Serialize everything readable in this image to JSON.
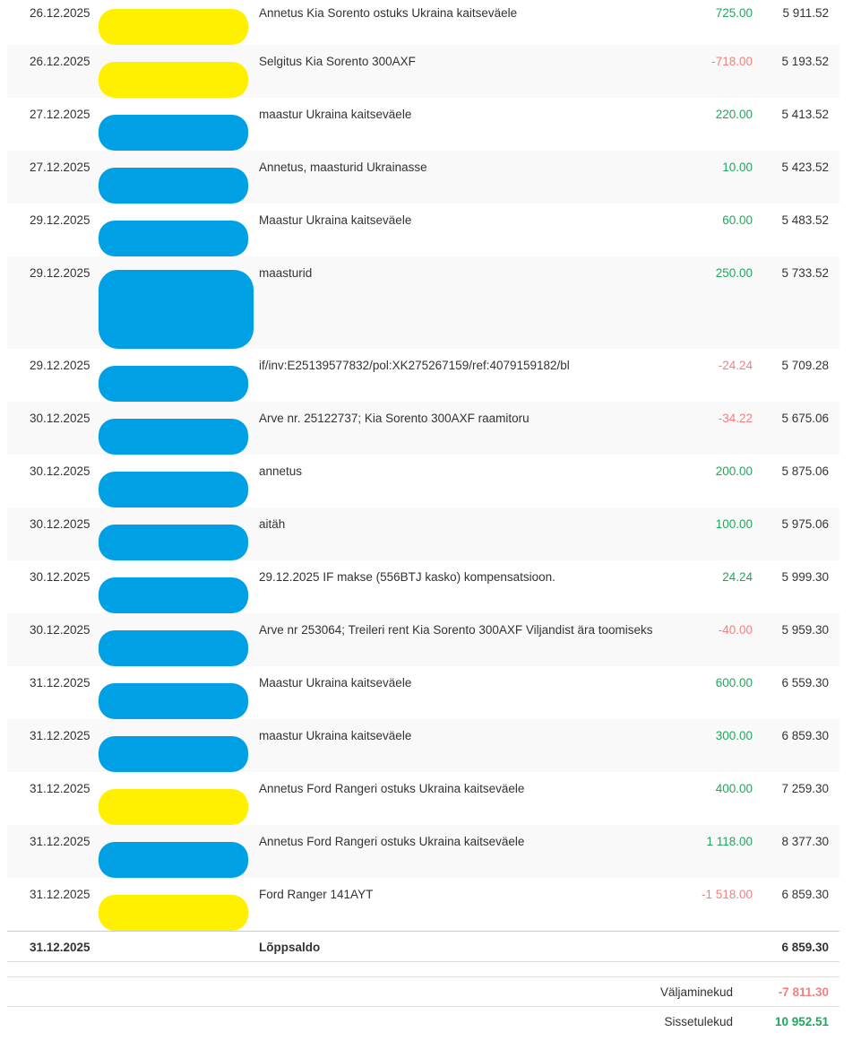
{
  "colors": {
    "credit_green": "#1fa85d",
    "debit_red": "#f47f7f",
    "redaction_yellow": "#fff000",
    "redaction_blue": "#00a1e4",
    "text": "#333333",
    "zebra_stripe": "#f9f9f9"
  },
  "table": {
    "rows": [
      {
        "date": "26.12.2025",
        "redaction_color": "yellow",
        "row_size": "normal",
        "description": "Annetus Kia Sorento ostuks Ukraina kaitseväele",
        "amount": "725.00",
        "amount_sign": "positive",
        "balance": "5 911.52"
      },
      {
        "date": "26.12.2025",
        "redaction_color": "yellow",
        "row_size": "normal",
        "description": "Selgitus Kia Sorento 300AXF",
        "amount": "-718.00",
        "amount_sign": "negative",
        "balance": "5 193.52"
      },
      {
        "date": "27.12.2025",
        "redaction_color": "blue",
        "row_size": "normal",
        "description": "maastur Ukraina kaitseväele",
        "amount": "220.00",
        "amount_sign": "positive",
        "balance": "5 413.52"
      },
      {
        "date": "27.12.2025",
        "redaction_color": "blue",
        "row_size": "normal",
        "description": "Annetus, maasturid Ukrainasse",
        "amount": "10.00",
        "amount_sign": "positive",
        "balance": "5 423.52"
      },
      {
        "date": "29.12.2025",
        "redaction_color": "blue",
        "row_size": "normal",
        "description": "Maastur Ukraina kaitseväele",
        "amount": "60.00",
        "amount_sign": "positive",
        "balance": "5 483.52"
      },
      {
        "date": "29.12.2025",
        "redaction_color": "blue",
        "row_size": "large",
        "description": "maasturid",
        "amount": "250.00",
        "amount_sign": "positive",
        "balance": "5 733.52"
      },
      {
        "date": "29.12.2025",
        "redaction_color": "blue",
        "row_size": "normal",
        "description": "if/inv:E25139577832/pol:XK275267159/ref:4079159182/bl",
        "amount": "-24.24",
        "amount_sign": "negative",
        "balance": "5 709.28"
      },
      {
        "date": "30.12.2025",
        "redaction_color": "blue",
        "row_size": "normal",
        "description": "Arve nr. 25122737; Kia Sorento 300AXF raamitoru",
        "amount": "-34.22",
        "amount_sign": "negative",
        "balance": "5 675.06"
      },
      {
        "date": "30.12.2025",
        "redaction_color": "blue",
        "row_size": "normal",
        "description": "annetus",
        "amount": "200.00",
        "amount_sign": "positive",
        "balance": "5 875.06"
      },
      {
        "date": "30.12.2025",
        "redaction_color": "blue",
        "row_size": "normal",
        "description": "aitäh",
        "amount": "100.00",
        "amount_sign": "positive",
        "balance": "5 975.06"
      },
      {
        "date": "30.12.2025",
        "redaction_color": "blue",
        "row_size": "normal",
        "description": "29.12.2025 IF makse (556BTJ kasko) kompensatsioon.",
        "amount": "24.24",
        "amount_sign": "positive",
        "balance": "5 999.30"
      },
      {
        "date": "30.12.2025",
        "redaction_color": "blue",
        "row_size": "normal",
        "description": "Arve nr 253064; Treileri rent Kia Sorento 300AXF Viljandist ära toomiseks",
        "amount": "-40.00",
        "amount_sign": "negative",
        "balance": "5 959.30"
      },
      {
        "date": "31.12.2025",
        "redaction_color": "blue",
        "row_size": "normal",
        "description": "Maastur Ukraina kaitseväele",
        "amount": "600.00",
        "amount_sign": "positive",
        "balance": "6 559.30"
      },
      {
        "date": "31.12.2025",
        "redaction_color": "blue",
        "row_size": "normal",
        "description": "maastur Ukraina kaitseväele",
        "amount": "300.00",
        "amount_sign": "positive",
        "balance": "6 859.30"
      },
      {
        "date": "31.12.2025",
        "redaction_color": "yellow",
        "row_size": "normal",
        "description": "Annetus Ford Rangeri ostuks Ukraina kaitseväele",
        "amount": "400.00",
        "amount_sign": "positive",
        "balance": "7 259.30"
      },
      {
        "date": "31.12.2025",
        "redaction_color": "blue",
        "row_size": "normal",
        "description": "Annetus Ford Rangeri ostuks Ukraina kaitseväele",
        "amount": "1 118.00",
        "amount_sign": "positive",
        "balance": "8 377.30"
      },
      {
        "date": "31.12.2025",
        "redaction_color": "yellow",
        "row_size": "normal",
        "description": "Ford Ranger 141AYT",
        "amount": "-1 518.00",
        "amount_sign": "negative",
        "balance": "6 859.30"
      }
    ]
  },
  "closing": {
    "date": "31.12.2025",
    "label": "Lõppsaldo",
    "balance": "6 859.30"
  },
  "totals": {
    "outgoing_label": "Väljaminekud",
    "outgoing_value": "-7 811.30",
    "incoming_label": "Sissetulekud",
    "incoming_value": "10 952.51"
  }
}
